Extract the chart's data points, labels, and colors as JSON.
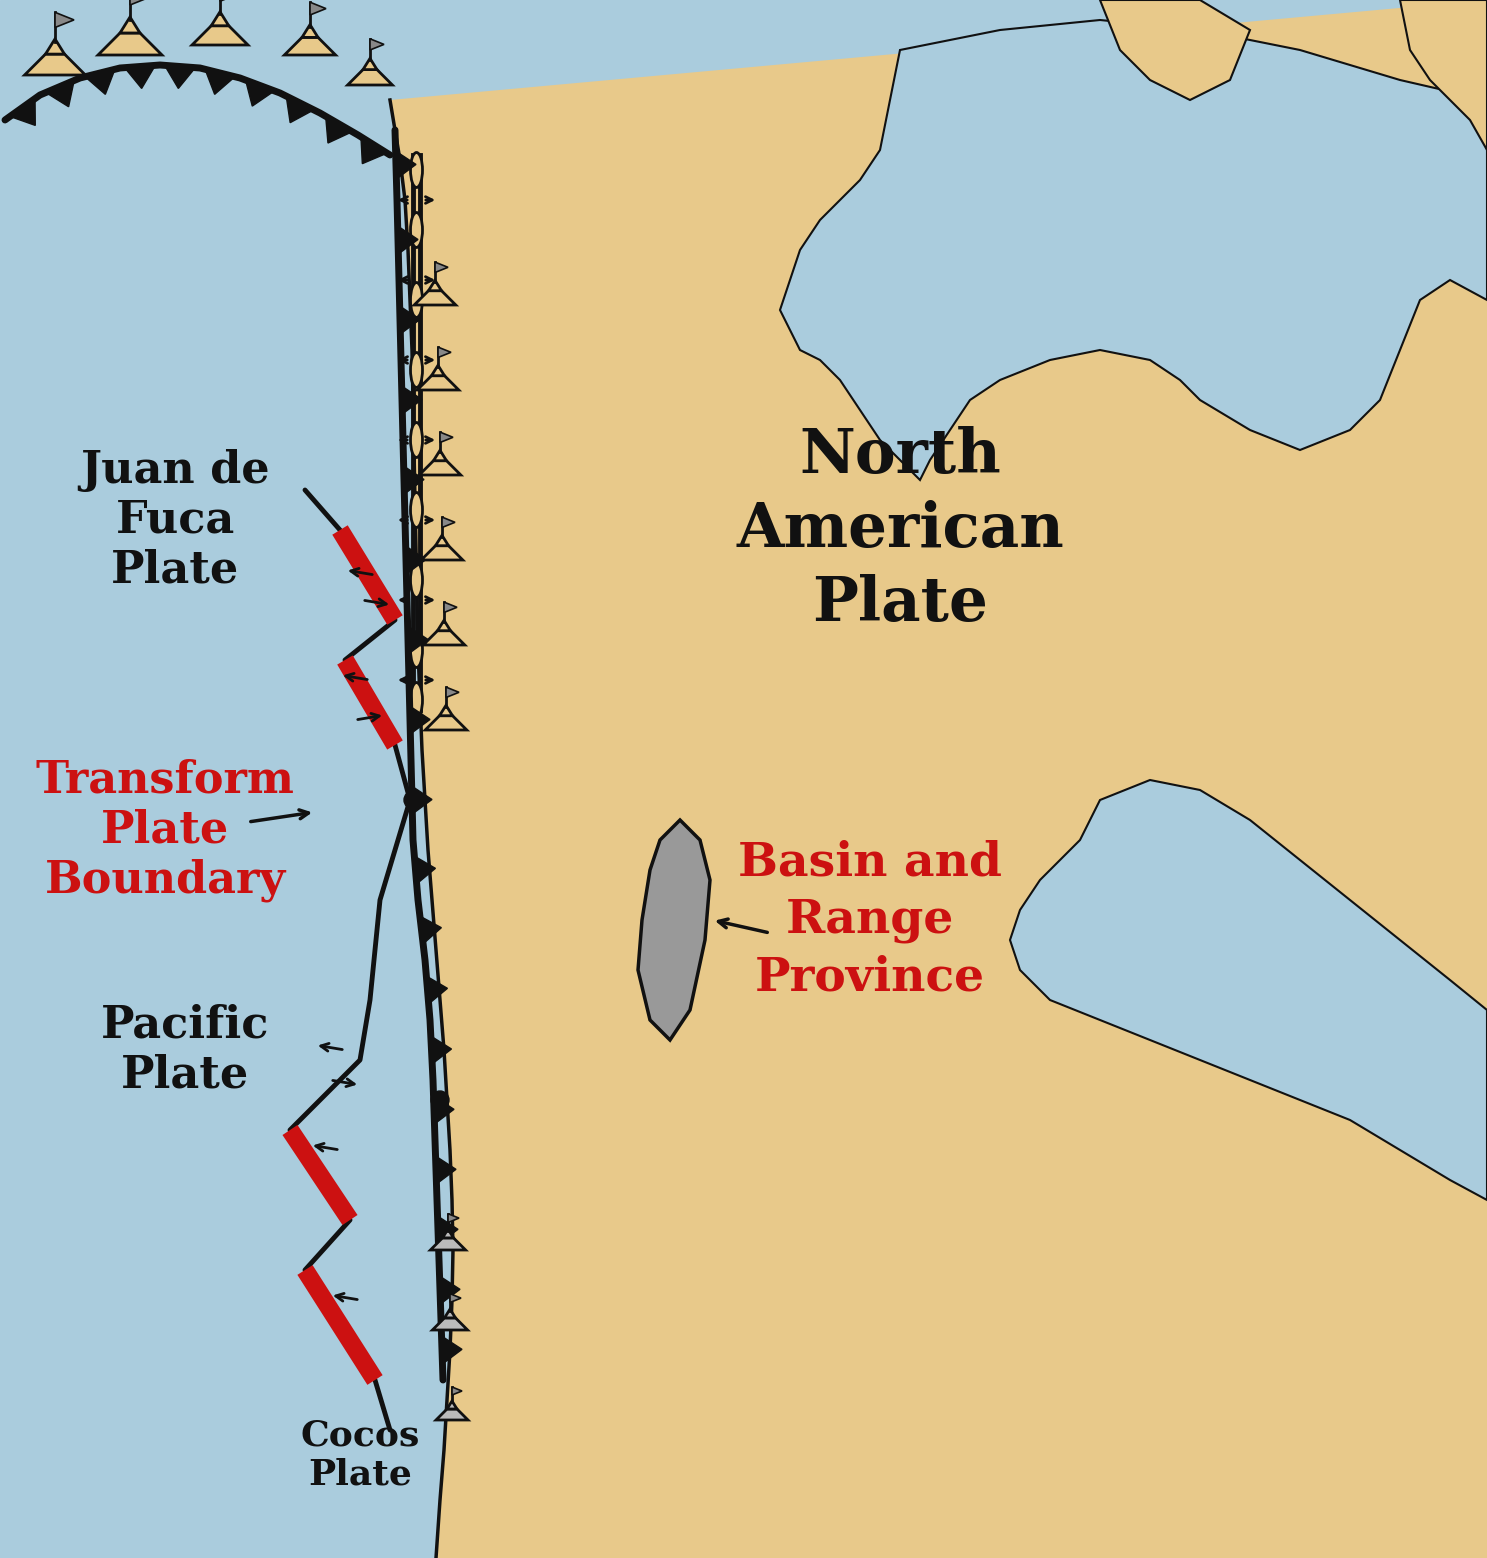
{
  "bg_ocean": "#aaccdd",
  "bg_land": "#e8c98a",
  "outline_color": "#111111",
  "red_boundary": "#cc1111",
  "text_black": "#111111",
  "text_red": "#cc1111",
  "gray_feature": "#999999",
  "gray_flag": "#888888",
  "labels": {
    "juan_de_fuca": "Juan de\nFuca\nPlate",
    "north_american": "North\nAmerican\nPlate",
    "pacific": "Pacific\nPlate",
    "cocos": "Cocos\nPlate",
    "transform": "Transform\nPlate\nBoundary",
    "basin_range": "Basin and\nRange\nProvince"
  },
  "font_size_large": 32,
  "font_size_medium": 26,
  "font_size_xlarge": 44
}
